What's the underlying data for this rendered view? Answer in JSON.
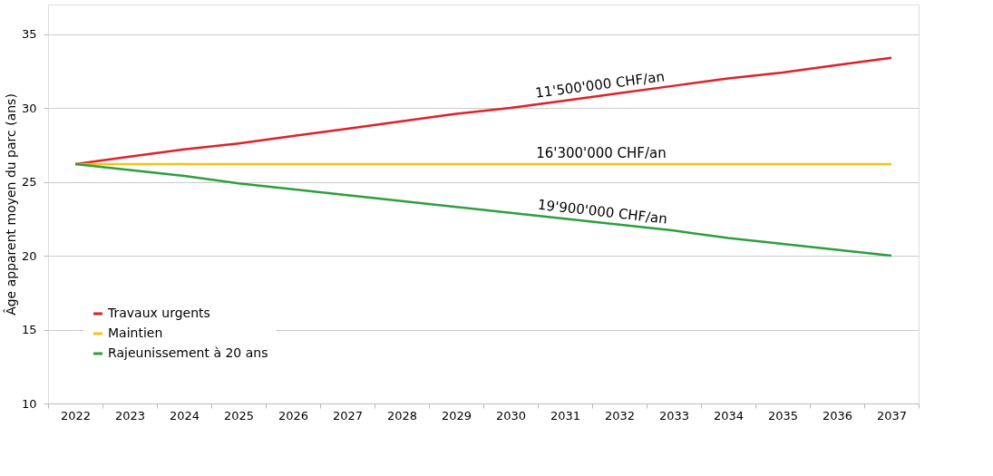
{
  "chart_data": {
    "type": "line",
    "ylabel": "Âge apparent moyen du parc (ans)",
    "categories": [
      "2022",
      "2023",
      "2024",
      "2025",
      "2026",
      "2027",
      "2028",
      "2029",
      "2030",
      "2031",
      "2032",
      "2033",
      "2034",
      "2035",
      "2036",
      "2037"
    ],
    "series": [
      {
        "name": "Travaux urgents",
        "color": "#e0202a",
        "values": [
          26.2,
          26.7,
          27.2,
          27.6,
          28.1,
          28.6,
          29.1,
          29.6,
          30.0,
          30.5,
          31.0,
          31.5,
          32.0,
          32.4,
          32.9,
          33.4
        ]
      },
      {
        "name": "Maintien",
        "color": "#f0c419",
        "values": [
          26.2,
          26.2,
          26.2,
          26.2,
          26.2,
          26.2,
          26.2,
          26.2,
          26.2,
          26.2,
          26.2,
          26.2,
          26.2,
          26.2,
          26.2,
          26.2
        ]
      },
      {
        "name": "Rajeunissement à 20 ans",
        "color": "#2e9e3e",
        "values": [
          26.2,
          25.8,
          25.4,
          24.9,
          24.5,
          24.1,
          23.7,
          23.3,
          22.9,
          22.5,
          22.1,
          21.7,
          21.2,
          20.8,
          20.4,
          20.0
        ]
      }
    ],
    "annotations": [
      {
        "text": "11'500'000 CHF/an",
        "x": "2032",
        "y": 31.0
      },
      {
        "text": "16'300'000 CHF/an",
        "x": "2032",
        "y": 26.2
      },
      {
        "text": "19'900'000 CHF/an",
        "x": "2032",
        "y": 22.1
      }
    ],
    "ylim": [
      10,
      37
    ],
    "yticks": [
      10,
      15,
      20,
      25,
      30,
      35
    ],
    "grid": "y",
    "legend": "bottom left",
    "marker": "none",
    "line_style": "solid"
  }
}
